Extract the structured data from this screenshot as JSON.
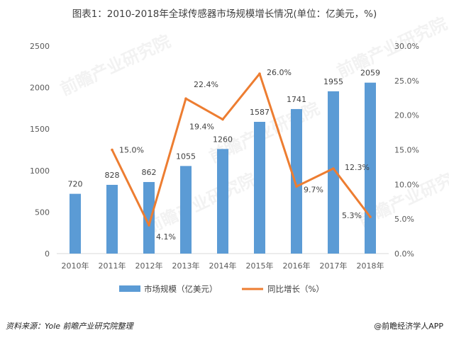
{
  "title": "图表1：2010-2018年全球传感器市场规模增长情况(单位：亿美元，%)",
  "source": "资料来源：Yole 前瞻产业研究院整理",
  "credit": "@前瞻经济学人APP",
  "watermark": "前瞻产业研究院",
  "chart_data": {
    "type": "bar",
    "categories": [
      "2010年",
      "2011年",
      "2012年",
      "2013年",
      "2014年",
      "2015年",
      "2016年",
      "2017年",
      "2018年"
    ],
    "series": [
      {
        "name": "市场规模（亿美元）",
        "type": "bar",
        "axis": "left",
        "color": "#5B9BD5",
        "values": [
          720,
          828,
          862,
          1055,
          1260,
          1587,
          1741,
          1955,
          2059
        ],
        "labels": [
          "720",
          "828",
          "862",
          "1055",
          "1260",
          "1587",
          "1741",
          "1955",
          "2059"
        ]
      },
      {
        "name": "同比增长（%）",
        "type": "line",
        "axis": "right",
        "color": "#ED7D31",
        "values": [
          null,
          15.0,
          4.1,
          22.4,
          19.4,
          26.0,
          9.7,
          12.3,
          5.3
        ],
        "labels": [
          "",
          "15.0%",
          "4.1%",
          "22.4%",
          "19.4%",
          "26.0%",
          "9.7%",
          "12.3%",
          "5.3%"
        ]
      }
    ],
    "ylim_left": [
      0,
      2500
    ],
    "yticks_left": [
      "0",
      "500",
      "1000",
      "1500",
      "2000",
      "2500"
    ],
    "ylim_right": [
      0,
      30
    ],
    "yticks_right": [
      "0.0%",
      "5.0%",
      "10.0%",
      "15.0%",
      "20.0%",
      "25.0%",
      "30.0%"
    ],
    "grid": false,
    "legend_position": "bottom"
  }
}
